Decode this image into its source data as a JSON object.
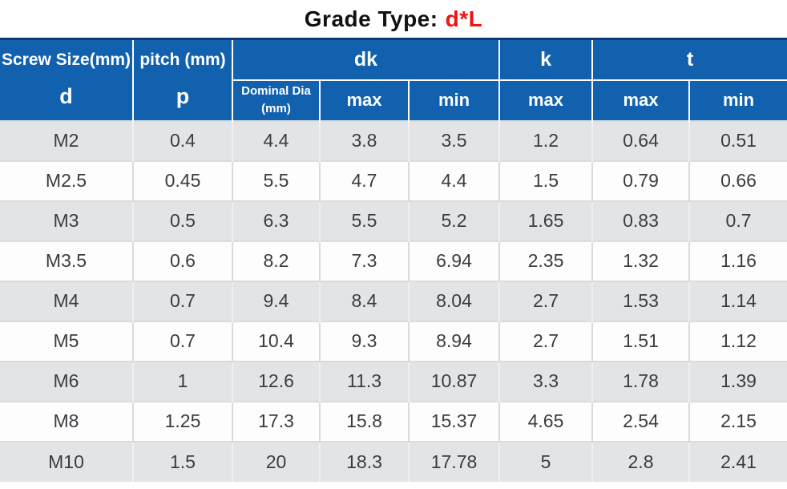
{
  "title": {
    "label": "Grade Type:",
    "value": "d*L"
  },
  "colors": {
    "header_bg": "#1161ae",
    "header_text": "#ffffff",
    "title_text": "#111111",
    "title_accent_red": "#f01313",
    "row_shaded_bg": "#e3e4e5",
    "row_plain_bg": "#fdfdfe",
    "body_text": "#3a3c3f",
    "grid_line": "#d9dbdc",
    "table_top_border": "#0d3a70"
  },
  "table": {
    "headers": {
      "screw_size": {
        "group": "Screw Size(mm)",
        "sub": "d"
      },
      "pitch": {
        "group": "pitch (mm)",
        "sub": "p"
      },
      "dk": {
        "group": "dk",
        "dia_line1": "Dominal Dia",
        "dia_line2": "(mm)",
        "max": "max",
        "min": "min"
      },
      "k": {
        "group": "k",
        "max": "max"
      },
      "t": {
        "group": "t",
        "max": "max",
        "min": "min"
      }
    },
    "rows": [
      [
        "M2",
        "0.4",
        "4.4",
        "3.8",
        "3.5",
        "1.2",
        "0.64",
        "0.51"
      ],
      [
        "M2.5",
        "0.45",
        "5.5",
        "4.7",
        "4.4",
        "1.5",
        "0.79",
        "0.66"
      ],
      [
        "M3",
        "0.5",
        "6.3",
        "5.5",
        "5.2",
        "1.65",
        "0.83",
        "0.7"
      ],
      [
        "M3.5",
        "0.6",
        "8.2",
        "7.3",
        "6.94",
        "2.35",
        "1.32",
        "1.16"
      ],
      [
        "M4",
        "0.7",
        "9.4",
        "8.4",
        "8.04",
        "2.7",
        "1.53",
        "1.14"
      ],
      [
        "M5",
        "0.7",
        "10.4",
        "9.3",
        "8.94",
        "2.7",
        "1.51",
        "1.12"
      ],
      [
        "M6",
        "1",
        "12.6",
        "11.3",
        "10.87",
        "3.3",
        "1.78",
        "1.39"
      ],
      [
        "M8",
        "1.25",
        "17.3",
        "15.8",
        "15.37",
        "4.65",
        "2.54",
        "2.15"
      ],
      [
        "M10",
        "1.5",
        "20",
        "18.3",
        "17.78",
        "5",
        "2.8",
        "2.41"
      ]
    ]
  }
}
